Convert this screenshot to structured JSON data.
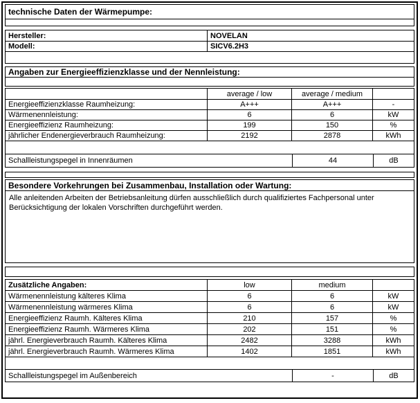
{
  "doc": {
    "title": "technische Daten der Wärmepumpe:",
    "manufacturer": {
      "label": "Hersteller:",
      "value": "NOVELAN"
    },
    "model": {
      "label": "Modell:",
      "value": "SICV6.2H3"
    },
    "energy": {
      "title": "Angaben zur Energieeffizienzklasse und der Nennleistung:",
      "headers": {
        "col1": "average / low",
        "col2": "average / medium"
      },
      "rows": [
        {
          "label": "Energieeffizienzklasse Raumheizung:",
          "low": "A+++",
          "medium": "A+++",
          "unit": "-"
        },
        {
          "label": "Wärmenennleistung:",
          "low": "6",
          "medium": "6",
          "unit": "kW"
        },
        {
          "label": "Energieeffizienz Raumheizung:",
          "low": "199",
          "medium": "150",
          "unit": "%"
        },
        {
          "label": "jährlicher Endenergieverbrauch Raumheizung:",
          "low": "2192",
          "medium": "2878",
          "unit": "kWh"
        }
      ],
      "sound": {
        "label": "Schallleistungspegel in Innenräumen",
        "value": "44",
        "unit": "dB"
      }
    },
    "precautions": {
      "title": "Besondere Vorkehrungen bei Zusammenbau, Installation oder Wartung:",
      "text": "Alle anleitenden Arbeiten der Betriebsanleitung dürfen ausschließlich durch qualifiziertes Fachpersonal unter Berücksichtigung der lokalen Vorschriften durchgeführt werden."
    },
    "additional": {
      "title": "Zusätzliche Angaben:",
      "headers": {
        "col1": "low",
        "col2": "medium"
      },
      "rows": [
        {
          "label": "Wärmenennleistung kälteres Klima",
          "low": "6",
          "medium": "6",
          "unit": "kW"
        },
        {
          "label": "Wärmenennleistung wärmeres Klima",
          "low": "6",
          "medium": "6",
          "unit": "kW"
        },
        {
          "label": "Energieeffizienz Raumh. Kälteres Klima",
          "low": "210",
          "medium": "157",
          "unit": "%"
        },
        {
          "label": "Energieeffizienz Raumh. Wärmeres Klima",
          "low": "202",
          "medium": "151",
          "unit": "%"
        },
        {
          "label": "jährl. Energieverbrauch Raumh. Kälteres Klima",
          "low": "2482",
          "medium": "3288",
          "unit": "kWh"
        },
        {
          "label": "jährl. Energieverbrauch Raumh. Wärmeres Klima",
          "low": "1402",
          "medium": "1851",
          "unit": "kWh"
        }
      ],
      "sound": {
        "label": "Schallleistungspegel im Außenbereich",
        "value": "-",
        "unit": "dB"
      }
    },
    "colors": {
      "border": "#000000",
      "text": "#000000",
      "background": "#ffffff"
    }
  }
}
